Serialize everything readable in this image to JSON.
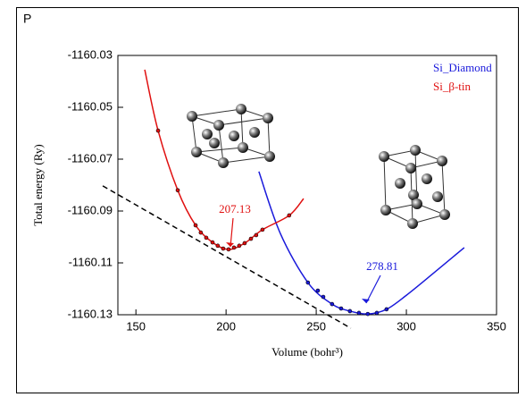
{
  "panel_label": "P",
  "chart_data": {
    "type": "line",
    "xlabel": "Volume (bohr³)",
    "ylabel": "Total energy (Ry)",
    "xlim": [
      140,
      350
    ],
    "xticks": [
      150,
      200,
      250,
      300,
      350
    ],
    "ylim": [
      -1160.13,
      -1160.03
    ],
    "yticks": [
      -1160.03,
      -1160.05,
      -1160.07,
      -1160.09,
      -1160.11,
      -1160.13
    ],
    "legend": "upper right",
    "series": [
      {
        "name": "Si_Diamond",
        "color": "#1a1adb",
        "annotation": "278.81",
        "x": [
          245.4,
          250.9,
          253.9,
          258.8,
          263.8,
          268.7,
          273.7,
          278.6,
          283.6,
          289.0
        ],
        "values": [
          -1160.1176,
          -1160.1207,
          -1160.1231,
          -1160.1259,
          -1160.1276,
          -1160.1286,
          -1160.1293,
          -1160.1297,
          -1160.1293,
          -1160.1279
        ],
        "curve_x": [
          218.2,
          230,
          245.4,
          258.8,
          268.7,
          278.6,
          289.0,
          300,
          315,
          332.1
        ],
        "curve_values": [
          -1160.0748,
          -1160.0985,
          -1160.1176,
          -1160.1259,
          -1160.1286,
          -1160.1297,
          -1160.1279,
          -1160.1225,
          -1160.114,
          -1160.1041
        ]
      },
      {
        "name": "Si_β-tin",
        "color": "#e01010",
        "annotation": "207.13",
        "x": [
          162.3,
          173.2,
          183.1,
          186.0,
          189.0,
          192.5,
          195.4,
          198.4,
          201.4,
          204.4,
          207.3,
          210.3,
          213.8,
          216.7,
          220.2,
          235.0
        ],
        "values": [
          -1160.059,
          -1160.082,
          -1160.0955,
          -1160.0983,
          -1160.1003,
          -1160.1021,
          -1160.1034,
          -1160.1045,
          -1160.1048,
          -1160.1041,
          -1160.1034,
          -1160.1024,
          -1160.1007,
          -1160.0993,
          -1160.0972,
          -1160.0917
        ],
        "curve_x": [
          154.9,
          162.3,
          173.2,
          183.1,
          192.5,
          201.4,
          210.3,
          220.2,
          235.0,
          243.0
        ],
        "curve_values": [
          -1160.0355,
          -1160.059,
          -1160.082,
          -1160.0955,
          -1160.1021,
          -1160.1048,
          -1160.1024,
          -1160.0972,
          -1160.0917,
          -1160.0852
        ]
      }
    ],
    "tangent_line": {
      "x": [
        131.6,
        269.2
      ],
      "values": [
        -1160.0803,
        -1160.1352
      ]
    }
  }
}
